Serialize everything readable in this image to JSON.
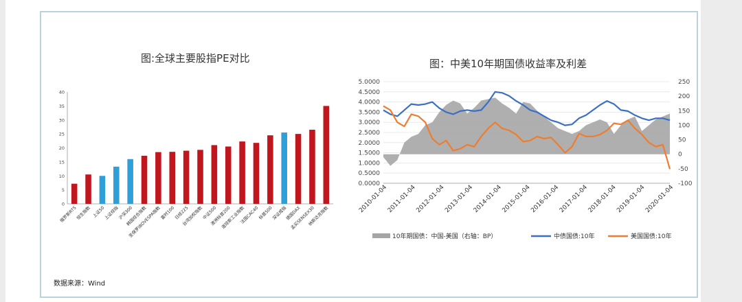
{
  "source_note": "数据来源：Wind",
  "chart_data": [
    {
      "type": "bar",
      "title": "图:全球主要股指PE对比",
      "categories": [
        "俄罗斯RTS",
        "恒生指数",
        "上证50",
        "上证综指",
        "沪深300",
        "韩国综合指数",
        "圣保罗IBOVESPA指数",
        "富时100",
        "日经225",
        "台湾加权指数",
        "中证500",
        "澳洲标普200",
        "道琼斯工业指数",
        "法国CAC40",
        "标普500",
        "深证成指",
        "德国DAX",
        "孟买SENSEX30",
        "纳斯达克指数"
      ],
      "values": [
        7.2,
        10.5,
        10.0,
        13.3,
        16.0,
        17.2,
        18.5,
        18.6,
        19.0,
        19.3,
        21.0,
        20.5,
        22.3,
        21.8,
        24.5,
        25.5,
        25.0,
        26.5,
        35.0
      ],
      "bar_colors": [
        "#c0161e",
        "#c0161e",
        "#2f9fd8",
        "#2f9fd8",
        "#2f9fd8",
        "#c0161e",
        "#c0161e",
        "#c0161e",
        "#c0161e",
        "#c0161e",
        "#c0161e",
        "#c0161e",
        "#c0161e",
        "#c0161e",
        "#c0161e",
        "#2f9fd8",
        "#c0161e",
        "#c0161e",
        "#c0161e"
      ],
      "yticks": [
        0,
        5,
        10,
        15,
        20,
        25,
        30,
        35,
        40
      ],
      "ylim": [
        0,
        40
      ]
    },
    {
      "type": "line",
      "title": "图：中美10年期国债收益率及利差",
      "x_ticks": [
        "2010-01-04",
        "2011-01-04",
        "2012-01-04",
        "2013-01-04",
        "2014-01-04",
        "2015-01-04",
        "2016-01-04",
        "2017-01-04",
        "2018-01-04",
        "2019-01-04",
        "2020-01-04"
      ],
      "y_left_ticks": [
        "5.0000",
        "4.5000",
        "4.0000",
        "3.5000",
        "3.0000",
        "2.5000",
        "2.0000",
        "1.5000",
        "1.0000",
        "0.5000",
        "0.0000"
      ],
      "y_left_lim": [
        0,
        5
      ],
      "y_right_ticks": [
        "250",
        "200",
        "150",
        "100",
        "50",
        "0",
        "-50",
        "-100"
      ],
      "y_right_lim": [
        -100,
        250
      ],
      "x": [
        2010.0,
        2010.25,
        2010.5,
        2010.75,
        2011.0,
        2011.25,
        2011.5,
        2011.75,
        2012.0,
        2012.25,
        2012.5,
        2012.75,
        2013.0,
        2013.25,
        2013.5,
        2013.75,
        2014.0,
        2014.25,
        2014.5,
        2014.75,
        2015.0,
        2015.25,
        2015.5,
        2015.75,
        2016.0,
        2016.25,
        2016.5,
        2016.75,
        2017.0,
        2017.25,
        2017.5,
        2017.75,
        2018.0,
        2018.25,
        2018.5,
        2018.75,
        2019.0,
        2019.25,
        2019.5,
        2019.75,
        2020.0,
        2020.25
      ],
      "series": [
        {
          "name": "10年期国债：中国-美国（右轴：BP）",
          "type": "area",
          "axis": "right",
          "color": "#a6a6a6",
          "values": [
            -10,
            -40,
            -20,
            40,
            60,
            70,
            100,
            110,
            145,
            170,
            185,
            175,
            140,
            160,
            185,
            190,
            195,
            175,
            160,
            140,
            180,
            175,
            150,
            130,
            110,
            90,
            80,
            70,
            80,
            100,
            110,
            120,
            110,
            70,
            100,
            120,
            130,
            80,
            100,
            120,
            130,
            140
          ]
        },
        {
          "name": "中债国债:10年",
          "type": "line",
          "axis": "left",
          "color": "#3a6fc4",
          "values": [
            3.6,
            3.4,
            3.3,
            3.6,
            3.9,
            3.85,
            3.9,
            4.0,
            3.7,
            3.5,
            3.4,
            3.55,
            3.6,
            3.55,
            3.6,
            4.0,
            4.5,
            4.45,
            4.3,
            4.05,
            3.85,
            3.6,
            3.5,
            3.3,
            3.1,
            3.0,
            2.85,
            2.9,
            3.2,
            3.35,
            3.6,
            3.85,
            4.05,
            3.9,
            3.6,
            3.55,
            3.35,
            3.2,
            3.1,
            3.2,
            3.2,
            3.1
          ]
        },
        {
          "name": "美国国债:10年",
          "type": "line",
          "axis": "left",
          "color": "#ed7d31",
          "values": [
            3.8,
            3.6,
            3.0,
            2.8,
            3.4,
            3.3,
            3.0,
            2.2,
            1.9,
            2.1,
            1.6,
            1.7,
            1.9,
            1.8,
            2.3,
            2.7,
            3.0,
            2.7,
            2.6,
            2.4,
            2.05,
            2.1,
            2.3,
            2.2,
            2.25,
            1.9,
            1.5,
            1.8,
            2.45,
            2.3,
            2.3,
            2.4,
            2.6,
            2.95,
            2.9,
            3.1,
            2.7,
            2.4,
            2.0,
            1.8,
            1.9,
            0.7
          ]
        }
      ],
      "legend_position": "bottom"
    }
  ]
}
